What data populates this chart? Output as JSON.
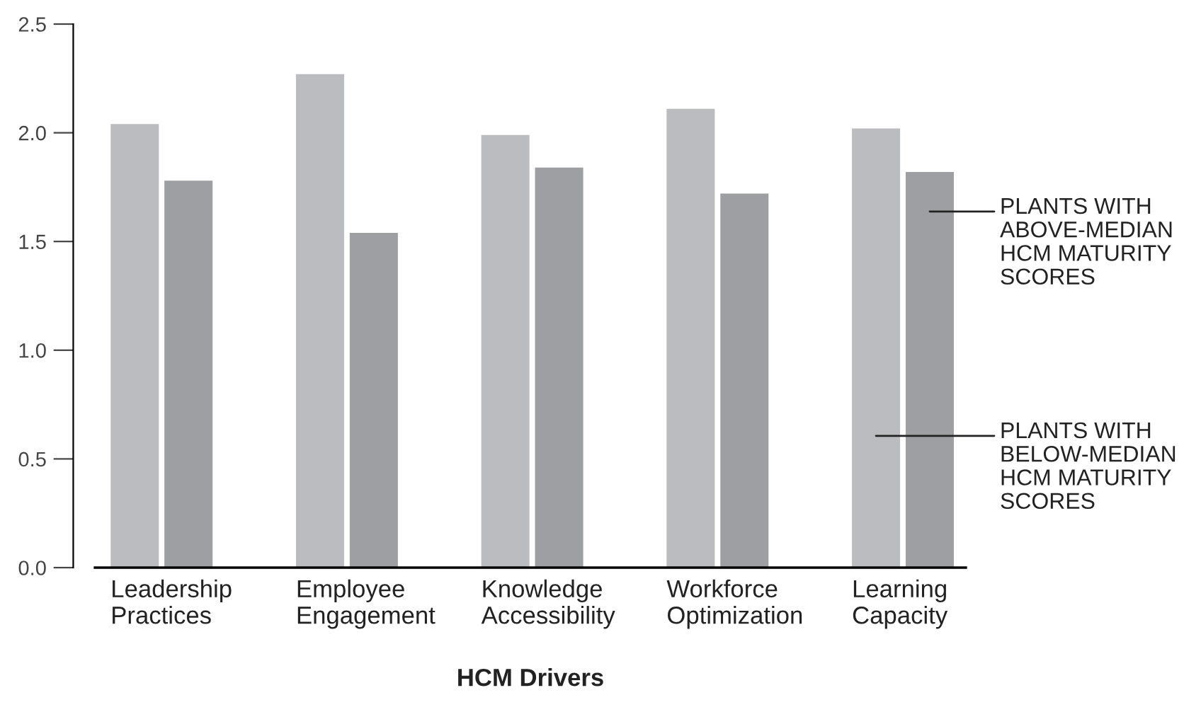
{
  "chart_data": {
    "type": "bar",
    "xlabel": "HCM Drivers",
    "categories": [
      "Leadership Practices",
      "Employee Engagement",
      "Knowledge Accessibility",
      "Workforce Optimization",
      "Learning Capacity"
    ],
    "series": [
      {
        "name": "PLANTS WITH BELOW-MEDIAN HCM MATURITY SCORES",
        "color": "#bbbcc0",
        "values": [
          2.04,
          2.27,
          1.99,
          2.11,
          2.02
        ]
      },
      {
        "name": "PLANTS WITH ABOVE-MEDIAN HCM MATURITY SCORES",
        "color": "#9e9fa3",
        "values": [
          1.78,
          1.54,
          1.84,
          1.72,
          1.82
        ]
      }
    ],
    "ylim": [
      0,
      2.5
    ],
    "yticks": [
      {
        "value": 0,
        "label": "0.0"
      },
      {
        "value": 0.5,
        "label": "0.5"
      },
      {
        "value": 1,
        "label": "1.0"
      },
      {
        "value": 1.5,
        "label": "1.5"
      },
      {
        "value": 2,
        "label": "2.0"
      },
      {
        "value": 2.5,
        "label": "2.5"
      }
    ],
    "grid": false,
    "legend": "right"
  }
}
